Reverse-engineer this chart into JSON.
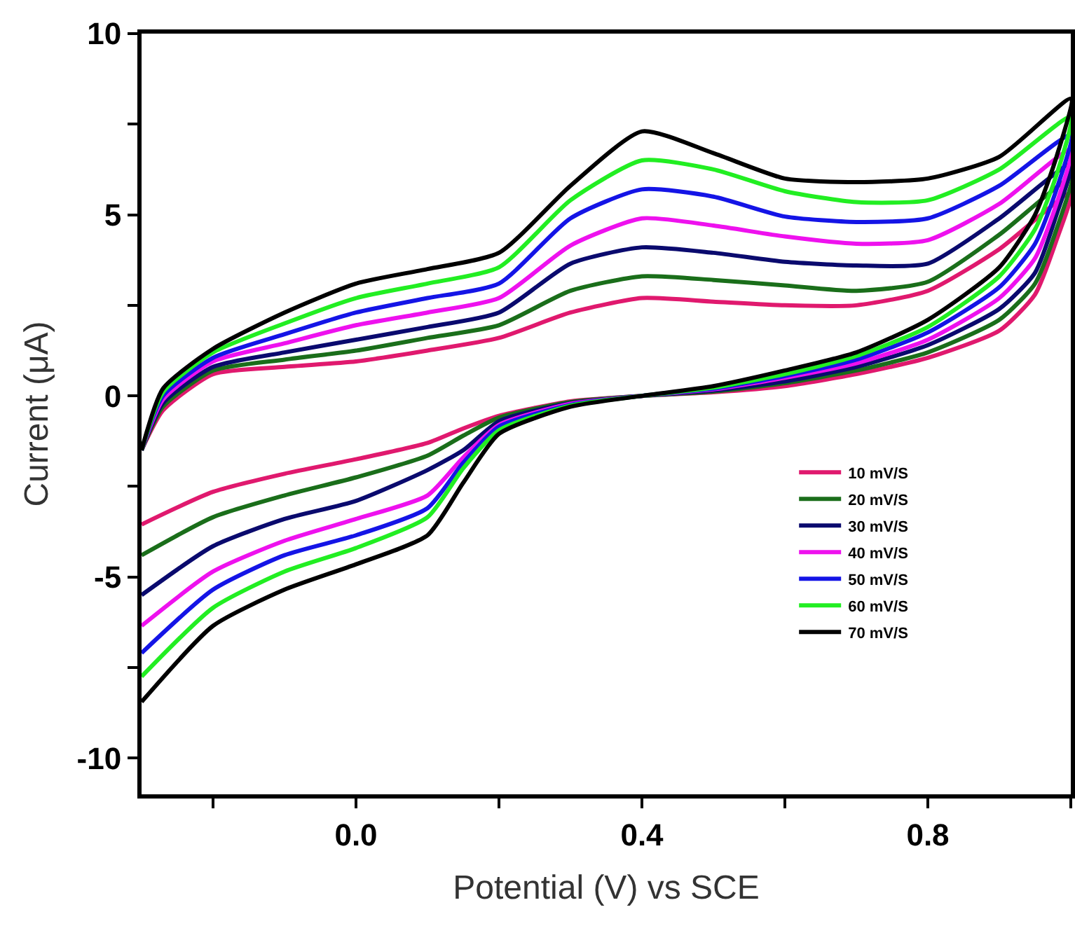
{
  "chart_data": {
    "type": "line",
    "xlabel": "Potential (V) vs SCE",
    "ylabel": "Current (μA)",
    "x": [
      -0.3,
      -0.27,
      -0.2,
      -0.1,
      0,
      0.1,
      0.2,
      0.3,
      0.4,
      0.5,
      0.6,
      0.7,
      0.8,
      0.9,
      1.0,
      0.98,
      0.95,
      0.9,
      0.8,
      0.7,
      0.6,
      0.5,
      0.4,
      0.3,
      0.2,
      0.15,
      0.1,
      0,
      -0.1,
      -0.2,
      -0.3
    ],
    "series": [
      {
        "name": "10 mV/S",
        "color": "#e0196e",
        "values": [
          -1.5,
          -0.4,
          0.6,
          0.8,
          0.95,
          1.25,
          1.6,
          2.3,
          2.7,
          2.6,
          2.5,
          2.5,
          2.9,
          4.05,
          5.6,
          4.3,
          2.8,
          1.8,
          1.05,
          0.6,
          0.27,
          0.1,
          0,
          -0.15,
          -0.55,
          -0.9,
          -1.3,
          -1.75,
          -2.15,
          -2.65,
          -3.55
        ]
      },
      {
        "name": "20 mV/S",
        "color": "#1a6e1a",
        "values": [
          -1.5,
          -0.3,
          0.7,
          1.0,
          1.25,
          1.6,
          1.95,
          2.9,
          3.3,
          3.2,
          3.05,
          2.9,
          3.15,
          4.45,
          6.0,
          4.6,
          3.1,
          2.1,
          1.2,
          0.7,
          0.35,
          0.12,
          0,
          -0.17,
          -0.6,
          -1.1,
          -1.65,
          -2.25,
          -2.75,
          -3.35,
          -4.4
        ]
      },
      {
        "name": "30 mV/S",
        "color": "#0a0a6e",
        "values": [
          -1.5,
          -0.2,
          0.8,
          1.2,
          1.55,
          1.9,
          2.3,
          3.65,
          4.1,
          3.95,
          3.7,
          3.6,
          3.65,
          4.9,
          6.4,
          5.0,
          3.4,
          2.4,
          1.4,
          0.8,
          0.4,
          0.15,
          0,
          -0.2,
          -0.7,
          -1.5,
          -2.05,
          -2.9,
          -3.4,
          -4.15,
          -5.5
        ]
      },
      {
        "name": "40 mV/S",
        "color": "#ee11ee",
        "values": [
          -1.5,
          -0.1,
          0.95,
          1.45,
          1.95,
          2.3,
          2.7,
          4.15,
          4.9,
          4.7,
          4.4,
          4.2,
          4.3,
          5.3,
          6.8,
          5.3,
          3.8,
          2.7,
          1.55,
          0.9,
          0.5,
          0.18,
          0,
          -0.22,
          -0.8,
          -1.7,
          -2.75,
          -3.4,
          -4.0,
          -4.85,
          -6.35
        ]
      },
      {
        "name": "50 mV/S",
        "color": "#1414e6",
        "values": [
          -1.5,
          0,
          1.05,
          1.7,
          2.3,
          2.7,
          3.1,
          4.9,
          5.7,
          5.5,
          4.95,
          4.8,
          4.9,
          5.8,
          7.2,
          5.7,
          4.2,
          3.0,
          1.75,
          1.0,
          0.55,
          0.2,
          0,
          -0.25,
          -0.85,
          -1.85,
          -3.1,
          -3.85,
          -4.4,
          -5.35,
          -7.1
        ]
      },
      {
        "name": "60 mV/S",
        "color": "#22ee22",
        "values": [
          -1.5,
          0.1,
          1.2,
          2.0,
          2.7,
          3.1,
          3.55,
          5.4,
          6.5,
          6.25,
          5.65,
          5.35,
          5.4,
          6.25,
          7.7,
          6.1,
          4.6,
          3.3,
          1.9,
          1.1,
          0.6,
          0.23,
          0,
          -0.27,
          -0.95,
          -2.0,
          -3.35,
          -4.2,
          -4.85,
          -5.85,
          -7.75
        ]
      },
      {
        "name": "70 mV/S",
        "color": "#000000",
        "values": [
          -1.5,
          0.2,
          1.3,
          2.3,
          3.1,
          3.5,
          3.95,
          5.8,
          7.3,
          6.7,
          6.0,
          5.9,
          6.0,
          6.6,
          8.2,
          6.6,
          5.0,
          3.55,
          2.1,
          1.2,
          0.7,
          0.27,
          0,
          -0.3,
          -1.05,
          -2.4,
          -3.85,
          -4.65,
          -5.35,
          -6.35,
          -8.45
        ]
      }
    ],
    "xlim": [
      -0.3,
      1.0
    ],
    "xticks": [
      {
        "value": -0.2,
        "label": null
      },
      {
        "value": 0,
        "label": "0.0"
      },
      {
        "value": 0.2,
        "label": null
      },
      {
        "value": 0.4,
        "label": "0.4"
      },
      {
        "value": 0.6,
        "label": null
      },
      {
        "value": 0.8,
        "label": "0.8"
      },
      {
        "value": 1.0,
        "label": null
      }
    ],
    "ylim": [
      -11,
      10
    ],
    "yticks": [
      -10,
      {
        "value": -7.5,
        "label": null
      },
      -5,
      {
        "value": -2.5,
        "label": null
      },
      0,
      {
        "value": 2.5,
        "label": null
      },
      5,
      {
        "value": 7.5,
        "label": null
      },
      10
    ],
    "legend": "bottom right",
    "line_style": "solid"
  }
}
